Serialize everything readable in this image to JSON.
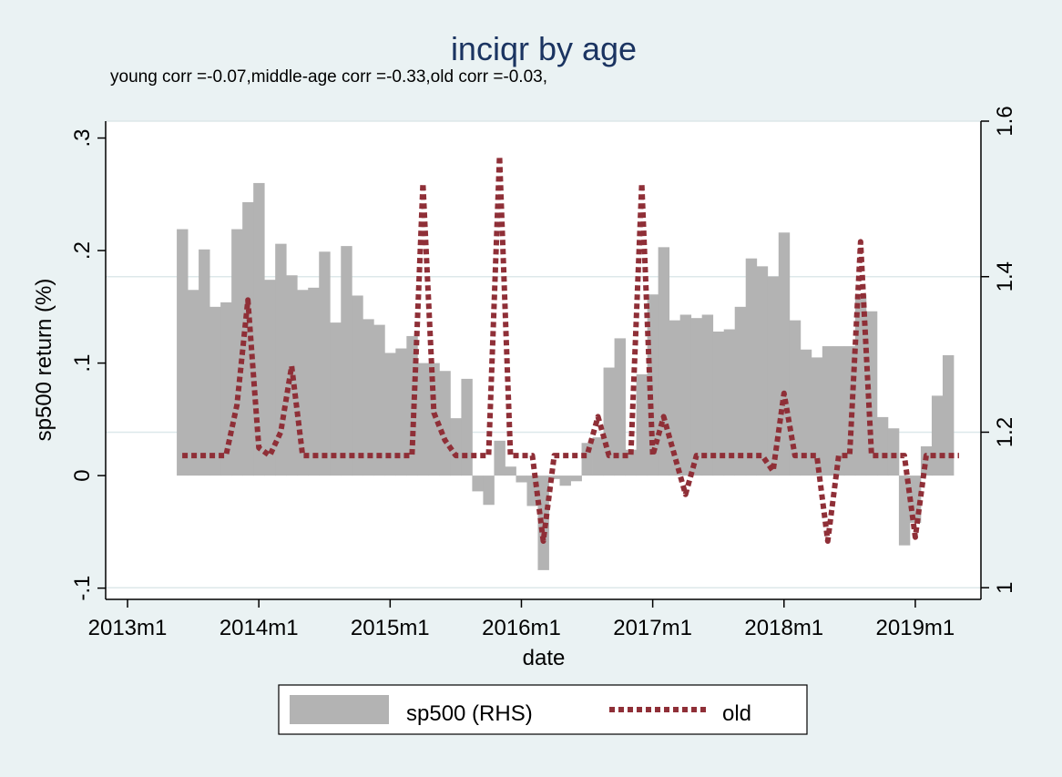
{
  "chart_data": {
    "type": "bar",
    "title": "inciqr by age",
    "subtitle": "young corr =-0.07,middle-age corr =-0.33,old corr =-0.03,",
    "xlabel": "date",
    "ylabel_left": "sp500 return (%)",
    "ylabel_right": "",
    "left_axis": {
      "ylim": [
        -0.11,
        0.315
      ],
      "ticks": [
        -0.1,
        0,
        0.1,
        0.2,
        0.3
      ],
      "tick_labels": [
        "-.1",
        "0",
        ".1",
        ".2",
        ".3"
      ]
    },
    "right_axis": {
      "ylim": [
        0.985,
        1.6
      ],
      "ticks": [
        1,
        1.2,
        1.4,
        1.6
      ],
      "tick_labels": [
        "1",
        "1.2",
        "1.4",
        "1.6"
      ]
    },
    "x_axis": {
      "xlim": [
        "2012-11",
        "2019-07"
      ],
      "ticks": [
        "2013-01",
        "2014-01",
        "2015-01",
        "2016-01",
        "2017-01",
        "2018-01",
        "2019-01"
      ],
      "tick_labels": [
        "2013m1",
        "2014m1",
        "2015m1",
        "2016m1",
        "2017m1",
        "2018m1",
        "2019m1"
      ]
    },
    "grid": true,
    "legend": {
      "position": "bottom",
      "entries": [
        "sp500 (RHS)",
        "old"
      ]
    },
    "colors": {
      "bars": "#b3b3b3",
      "line": "#8f2f37",
      "title": "#1b3461",
      "background": "#eaf2f3",
      "plot": "#ffffff",
      "grid": "#dde8ea"
    },
    "series": [
      {
        "name": "sp500 (RHS)",
        "type": "bar",
        "axis": "left",
        "start": "2013-06",
        "values": [
          0.219,
          0.165,
          0.201,
          0.15,
          0.154,
          0.219,
          0.243,
          0.26,
          0.174,
          0.206,
          0.178,
          0.165,
          0.167,
          0.199,
          0.136,
          0.204,
          0.16,
          0.139,
          0.134,
          0.109,
          0.113,
          0.124,
          0.1,
          0.1,
          0.093,
          0.051,
          0.086,
          -0.014,
          -0.026,
          0.031,
          0.008,
          -0.006,
          -0.027,
          -0.084,
          -0.003,
          -0.009,
          -0.005,
          0.029,
          0.034,
          0.096,
          0.122,
          0.023,
          0.09,
          0.161,
          0.203,
          0.138,
          0.143,
          0.14,
          0.143,
          0.128,
          0.13,
          0.15,
          0.193,
          0.186,
          0.177,
          0.216,
          0.138,
          0.112,
          0.105,
          0.115,
          0.115,
          0.115,
          0.161,
          0.146,
          0.052,
          0.042,
          -0.062,
          -0.042,
          0.026,
          0.071,
          0.107
        ]
      },
      {
        "name": "old",
        "type": "line",
        "axis": "right",
        "start": "2013-06",
        "values": [
          1.17,
          1.17,
          1.17,
          1.17,
          1.17,
          1.235,
          1.37,
          1.18,
          1.17,
          1.2,
          1.285,
          1.17,
          1.17,
          1.17,
          1.17,
          1.17,
          1.17,
          1.17,
          1.17,
          1.17,
          1.17,
          1.17,
          1.52,
          1.225,
          1.19,
          1.17,
          1.17,
          1.17,
          1.17,
          1.555,
          1.17,
          1.17,
          1.17,
          1.06,
          1.17,
          1.17,
          1.17,
          1.17,
          1.22,
          1.17,
          1.17,
          1.17,
          1.52,
          1.17,
          1.22,
          1.17,
          1.12,
          1.17,
          1.17,
          1.17,
          1.17,
          1.17,
          1.17,
          1.17,
          1.15,
          1.25,
          1.17,
          1.17,
          1.17,
          1.06,
          1.17,
          1.17,
          1.445,
          1.17,
          1.17,
          1.17,
          1.17,
          1.065,
          1.17,
          1.17,
          1.17,
          1.17
        ]
      }
    ]
  }
}
